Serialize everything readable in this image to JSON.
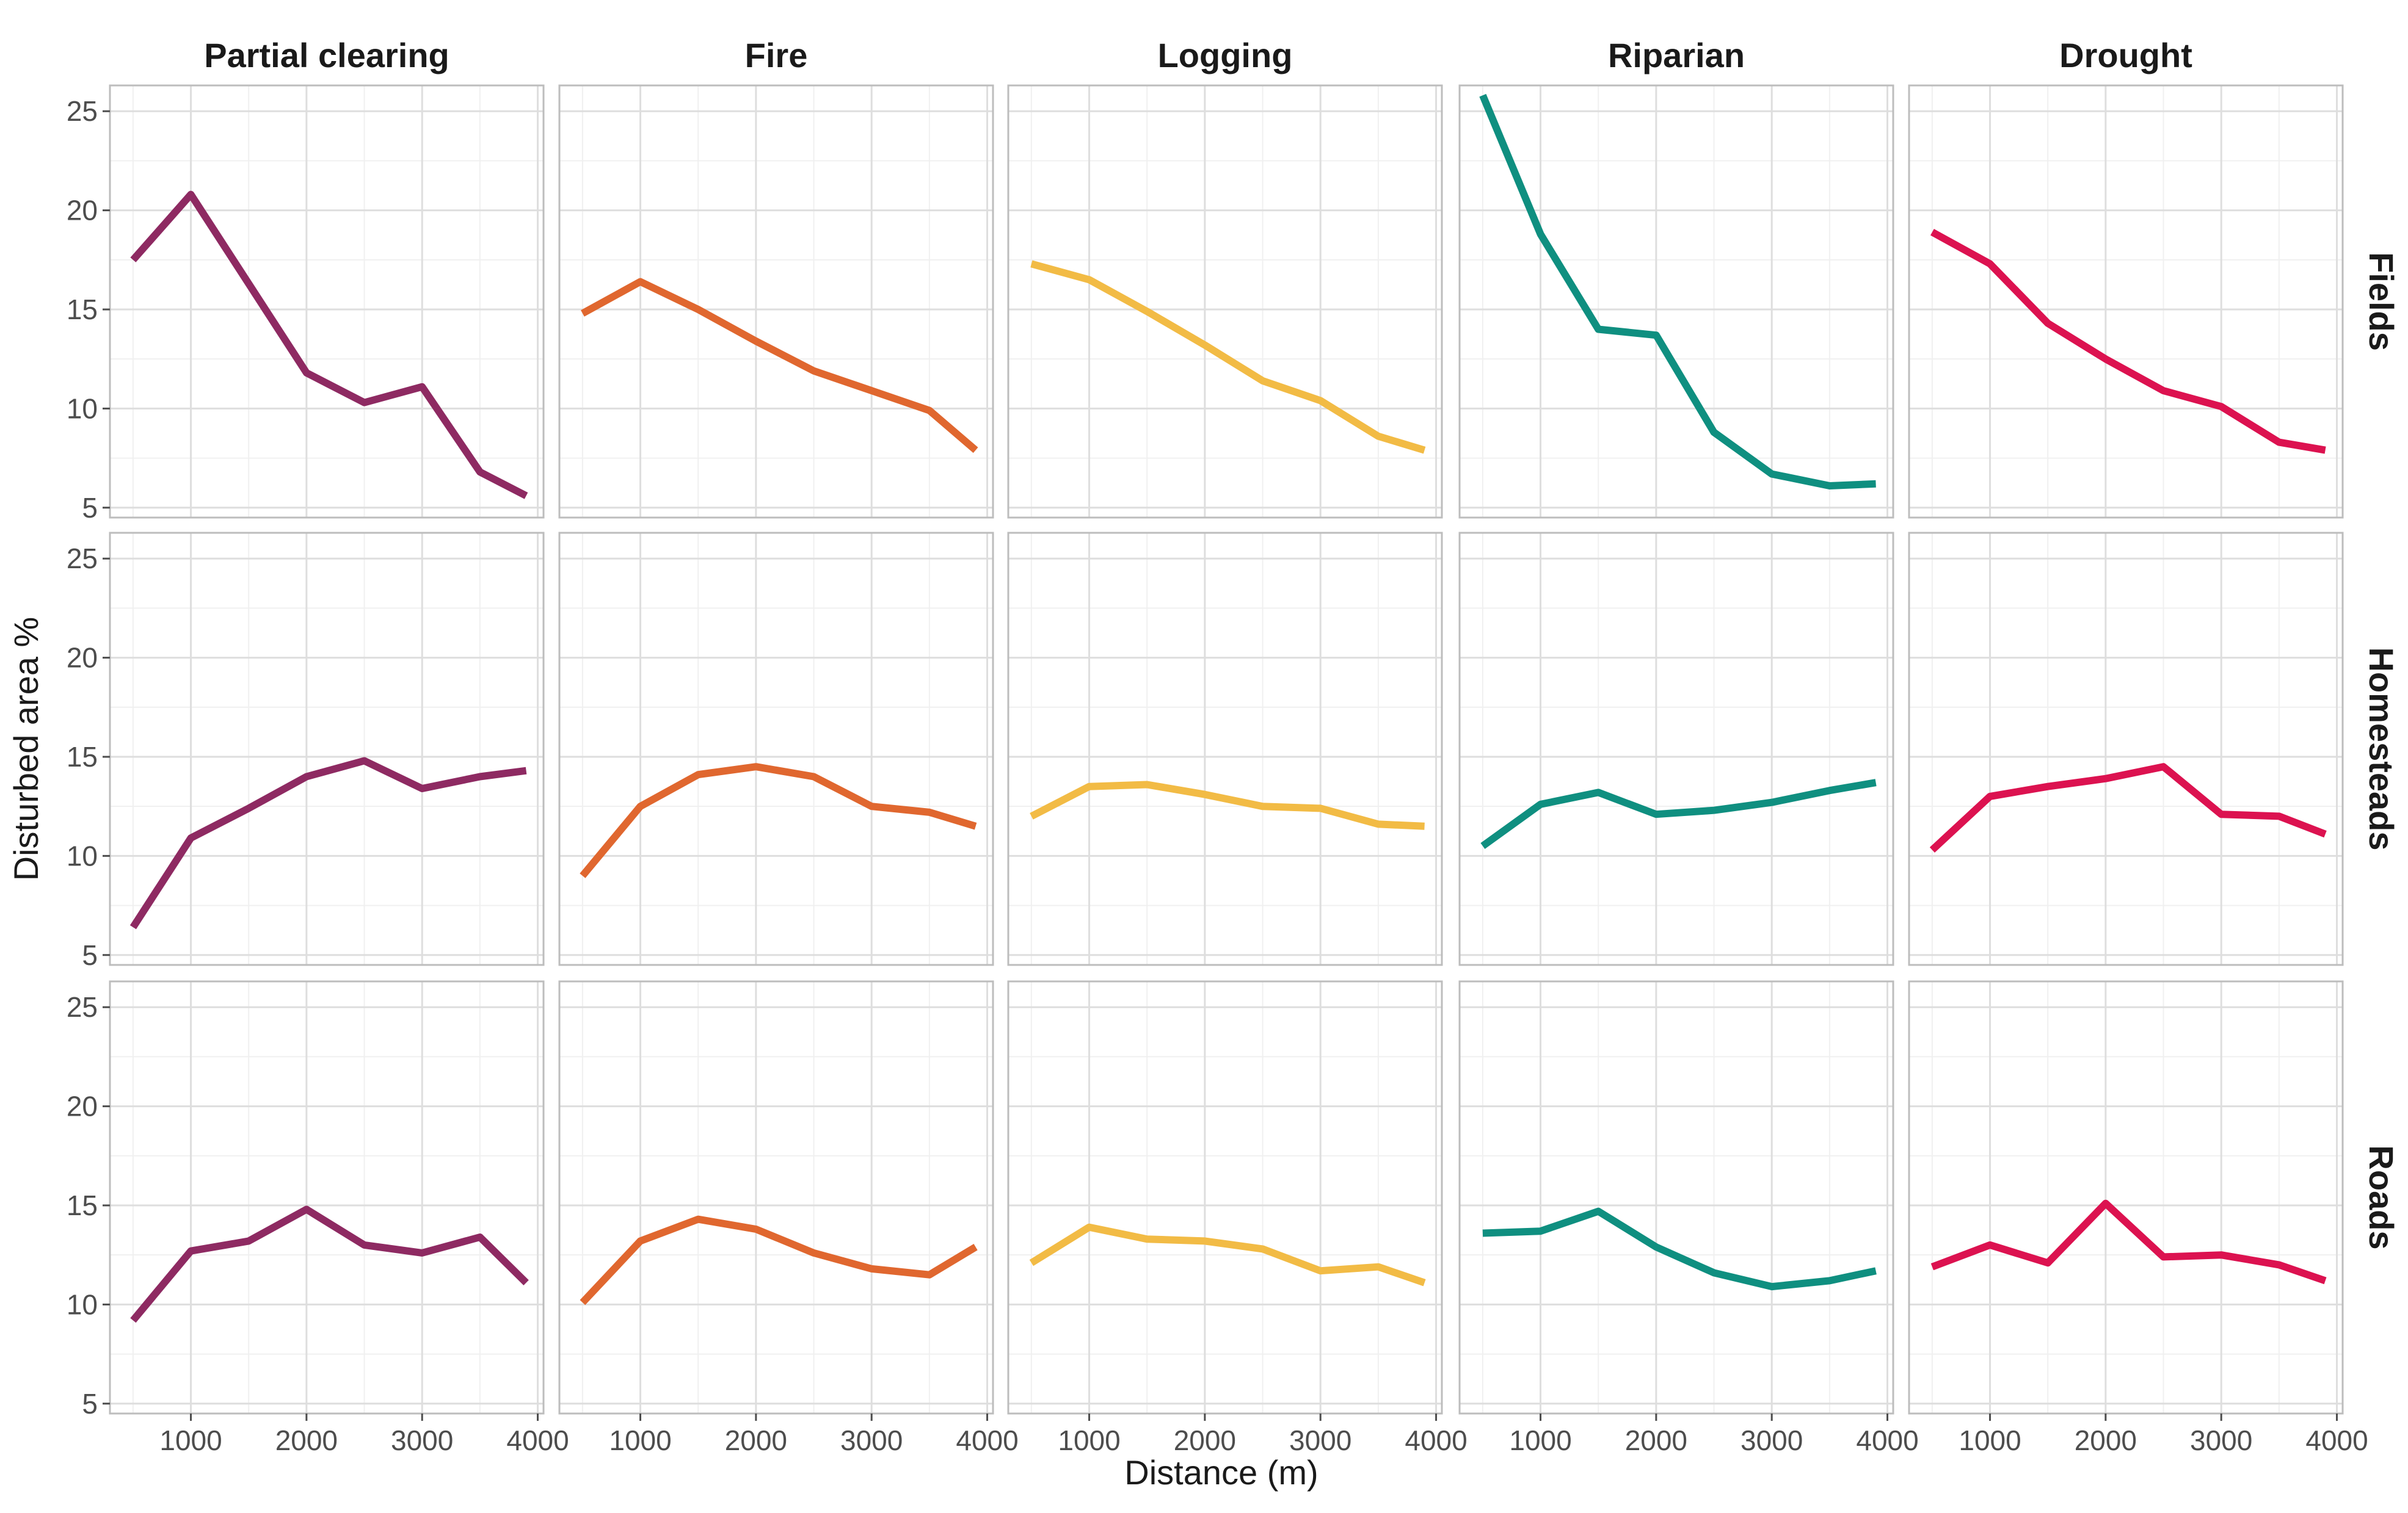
{
  "chart_data": {
    "type": "line",
    "layout": "facet-grid",
    "xlabel": "Distance (m)",
    "ylabel": "Disturbed area %",
    "x": [
      500,
      1000,
      1500,
      2000,
      2500,
      3000,
      3500,
      3900
    ],
    "xlim": [
      300,
      4050
    ],
    "ylim": [
      4.5,
      26.3
    ],
    "xticks": [
      1000,
      2000,
      3000,
      4000
    ],
    "yticks": [
      5,
      10,
      15,
      20,
      25
    ],
    "x_tick_labels": [
      "1000",
      "2000",
      "3000",
      "4000"
    ],
    "y_tick_labels": [
      "5",
      "10",
      "15",
      "20",
      "25"
    ],
    "columns": [
      {
        "name": "Partial clearing",
        "color": "#8e2a62"
      },
      {
        "name": "Fire",
        "color": "#e0672f"
      },
      {
        "name": "Logging",
        "color": "#f2bb45"
      },
      {
        "name": "Riparian",
        "color": "#0f8f80"
      },
      {
        "name": "Drought",
        "color": "#dc1250"
      }
    ],
    "rows": [
      "Fields",
      "Homesteads",
      "Roads"
    ],
    "series": [
      {
        "row": "Fields",
        "column": "Partial clearing",
        "values": [
          17.5,
          20.8,
          16.3,
          11.8,
          10.3,
          11.1,
          6.8,
          5.6
        ]
      },
      {
        "row": "Fields",
        "column": "Fire",
        "values": [
          14.8,
          16.4,
          15.0,
          13.4,
          11.9,
          10.9,
          9.9,
          7.9
        ]
      },
      {
        "row": "Fields",
        "column": "Logging",
        "values": [
          17.3,
          16.5,
          14.9,
          13.2,
          11.4,
          10.4,
          8.6,
          7.9
        ]
      },
      {
        "row": "Fields",
        "column": "Riparian",
        "values": [
          25.8,
          18.8,
          14.0,
          13.7,
          8.8,
          6.7,
          6.1,
          6.2
        ]
      },
      {
        "row": "Fields",
        "column": "Drought",
        "values": [
          18.9,
          17.3,
          14.3,
          12.5,
          10.9,
          10.1,
          8.3,
          7.9
        ]
      },
      {
        "row": "Homesteads",
        "column": "Partial clearing",
        "values": [
          6.4,
          10.9,
          12.4,
          14.0,
          14.8,
          13.4,
          14.0,
          14.3
        ]
      },
      {
        "row": "Homesteads",
        "column": "Fire",
        "values": [
          9.0,
          12.5,
          14.1,
          14.5,
          14.0,
          12.5,
          12.2,
          11.5
        ]
      },
      {
        "row": "Homesteads",
        "column": "Logging",
        "values": [
          12.0,
          13.5,
          13.6,
          13.1,
          12.5,
          12.4,
          11.6,
          11.5
        ]
      },
      {
        "row": "Homesteads",
        "column": "Riparian",
        "values": [
          10.5,
          12.6,
          13.2,
          12.1,
          12.3,
          12.7,
          13.3,
          13.7
        ]
      },
      {
        "row": "Homesteads",
        "column": "Drought",
        "values": [
          10.3,
          13.0,
          13.5,
          13.9,
          14.5,
          12.1,
          12.0,
          11.1
        ]
      },
      {
        "row": "Roads",
        "column": "Partial clearing",
        "values": [
          9.2,
          12.7,
          13.2,
          14.8,
          13.0,
          12.6,
          13.4,
          11.1
        ]
      },
      {
        "row": "Roads",
        "column": "Fire",
        "values": [
          10.1,
          13.2,
          14.3,
          13.8,
          12.6,
          11.8,
          11.5,
          12.9
        ]
      },
      {
        "row": "Roads",
        "column": "Logging",
        "values": [
          12.1,
          13.9,
          13.3,
          13.2,
          12.8,
          11.7,
          11.9,
          11.1
        ]
      },
      {
        "row": "Roads",
        "column": "Riparian",
        "values": [
          13.6,
          13.7,
          14.7,
          12.9,
          11.6,
          10.9,
          11.2,
          11.7
        ]
      },
      {
        "row": "Roads",
        "column": "Drought",
        "values": [
          11.9,
          13.0,
          12.1,
          15.1,
          12.4,
          12.5,
          12.0,
          11.2
        ]
      }
    ]
  }
}
